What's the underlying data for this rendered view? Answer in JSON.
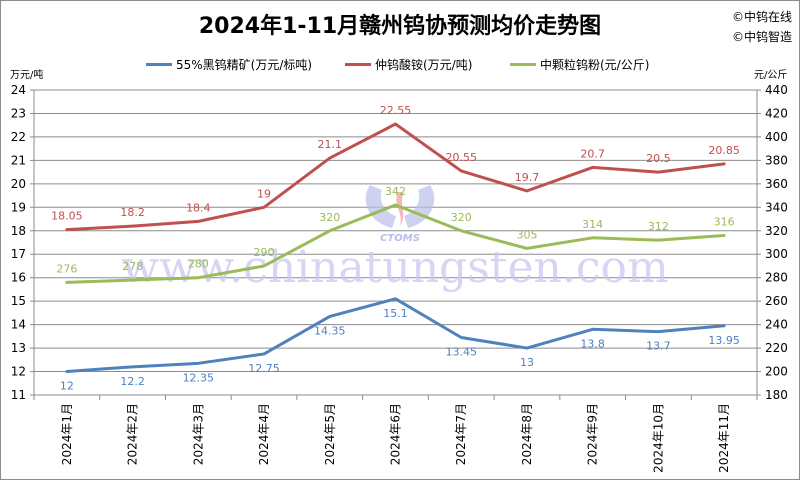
{
  "title": "2024年1-11月赣州钨协预测均价走势图",
  "copyright": [
    "©中钨在线",
    "©中钨智造"
  ],
  "left_unit": "万元/吨",
  "right_unit": "元/公斤",
  "watermark": {
    "url_text": "www.chinatungsten.com",
    "logo_text": "CTOMS"
  },
  "legend": [
    {
      "label": "55%黑钨精矿(万元/标吨)",
      "color": "#4f81bd"
    },
    {
      "label": "仲钨酸铵(万元/吨)",
      "color": "#c0504d"
    },
    {
      "label": "中颗粒钨粉(元/公斤)",
      "color": "#9bbb59"
    }
  ],
  "chart_data": {
    "type": "line",
    "title": "2024年1-11月赣州钨协预测均价走势图",
    "categories": [
      "2024年1月",
      "2024年2月",
      "2024年3月",
      "2024年4月",
      "2024年5月",
      "2024年6月",
      "2024年7月",
      "2024年8月",
      "2024年9月",
      "2024年10月",
      "2024年11月"
    ],
    "series": [
      {
        "name": "55%黑钨精矿(万元/标吨)",
        "axis": "left",
        "color": "#4f81bd",
        "values": [
          12,
          12.2,
          12.35,
          12.75,
          14.35,
          15.1,
          13.45,
          13,
          13.8,
          13.7,
          13.95
        ]
      },
      {
        "name": "仲钨酸铵(万元/吨)",
        "axis": "left",
        "color": "#c0504d",
        "values": [
          18.05,
          18.2,
          18.4,
          19,
          21.1,
          22.55,
          20.55,
          19.7,
          20.7,
          20.5,
          20.85
        ]
      },
      {
        "name": "中颗粒钨粉(元/公斤)",
        "axis": "right",
        "color": "#9bbb59",
        "values": [
          276,
          278,
          280,
          290,
          320,
          342,
          320,
          305,
          314,
          312,
          316
        ]
      }
    ],
    "xlabel": "",
    "ylabel": "万元/吨",
    "y2label": "元/公斤",
    "ylim": [
      11,
      24
    ],
    "y2lim": [
      180,
      440
    ],
    "yticks": [
      11,
      12,
      13,
      14,
      15,
      16,
      17,
      18,
      19,
      20,
      21,
      22,
      23,
      24
    ],
    "y2ticks": [
      180,
      200,
      220,
      240,
      260,
      280,
      300,
      320,
      340,
      360,
      380,
      400,
      420,
      440
    ],
    "grid": true,
    "legend_position": "top"
  }
}
